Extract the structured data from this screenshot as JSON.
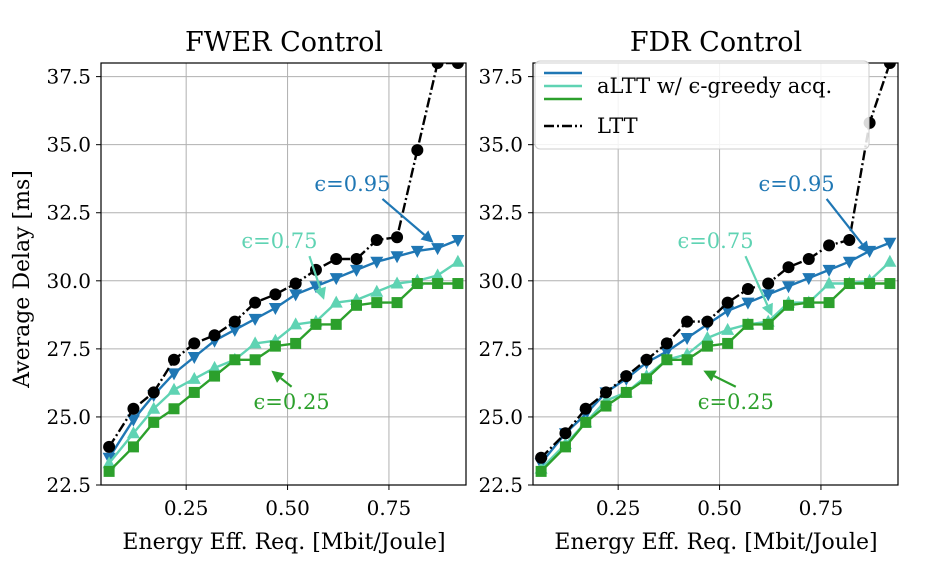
{
  "chart_data": [
    {
      "type": "line",
      "title": "FWER Control",
      "xlabel": "Energy Eff. Req. [Mbit/Joule]",
      "ylabel": "Average Delay [ms]",
      "xlim": [
        0.04,
        0.94
      ],
      "ylim": [
        22.5,
        38.0
      ],
      "xticks": [
        "0.25",
        "0.50",
        "0.75"
      ],
      "yticks": [
        "22.5",
        "25.0",
        "27.5",
        "30.0",
        "32.5",
        "35.0",
        "37.5"
      ],
      "grid": true,
      "x": [
        0.06,
        0.12,
        0.17,
        0.22,
        0.27,
        0.32,
        0.37,
        0.42,
        0.47,
        0.52,
        0.57,
        0.62,
        0.67,
        0.72,
        0.77,
        0.82,
        0.87,
        0.92
      ],
      "series": [
        {
          "name": "aLTT eps=0.95",
          "color": "#1f77b4",
          "marker": "triangle-down",
          "values": [
            23.5,
            24.9,
            25.8,
            26.6,
            27.2,
            27.8,
            28.2,
            28.6,
            29.0,
            29.5,
            29.8,
            30.1,
            30.4,
            30.7,
            30.9,
            31.1,
            31.2,
            31.5
          ]
        },
        {
          "name": "aLTT eps=0.75",
          "color": "#5fd3b3",
          "marker": "triangle-up",
          "values": [
            23.3,
            24.4,
            25.3,
            26.0,
            26.4,
            26.8,
            27.1,
            27.7,
            27.8,
            28.4,
            28.5,
            29.2,
            29.3,
            29.6,
            29.9,
            30.0,
            30.2,
            30.7
          ]
        },
        {
          "name": "aLTT eps=0.25",
          "color": "#2ca02c",
          "marker": "square",
          "values": [
            23.0,
            23.9,
            24.8,
            25.3,
            25.9,
            26.5,
            27.1,
            27.1,
            27.6,
            27.7,
            28.4,
            28.4,
            29.1,
            29.2,
            29.2,
            29.9,
            29.9,
            29.9
          ]
        },
        {
          "name": "LTT",
          "color": "#000000",
          "marker": "circle",
          "values": [
            23.9,
            25.3,
            25.9,
            27.1,
            27.7,
            28.0,
            28.5,
            29.2,
            29.5,
            29.9,
            30.4,
            30.8,
            30.8,
            31.5,
            31.6,
            34.8,
            38.0,
            38.0
          ]
        }
      ],
      "annotations": [
        {
          "text": "ϵ=0.95",
          "color": "#1f77b4",
          "xy": [
            0.86,
            31.4
          ],
          "xytext": [
            0.66,
            33.3
          ]
        },
        {
          "text": "ϵ=0.75",
          "color": "#5fd3b3",
          "xy": [
            0.59,
            29.3
          ],
          "xytext": [
            0.48,
            31.2
          ]
        },
        {
          "text": "ϵ=0.25",
          "color": "#2ca02c",
          "xy": [
            0.46,
            26.7
          ],
          "xytext": [
            0.51,
            25.3
          ]
        }
      ]
    },
    {
      "type": "line",
      "title": "FDR Control",
      "xlabel": "Energy Eff. Req. [Mbit/Joule]",
      "ylabel": "",
      "xlim": [
        0.04,
        0.94
      ],
      "ylim": [
        22.5,
        38.0
      ],
      "xticks": [
        "0.25",
        "0.50",
        "0.75"
      ],
      "yticks": [
        "22.5",
        "25.0",
        "27.5",
        "30.0",
        "32.5",
        "35.0",
        "37.5"
      ],
      "grid": true,
      "legend": {
        "location": "top-right",
        "entries": [
          "aLTT w/ ϵ-greedy acq.",
          "LTT"
        ]
      },
      "x": [
        0.06,
        0.12,
        0.17,
        0.22,
        0.27,
        0.32,
        0.37,
        0.42,
        0.47,
        0.52,
        0.57,
        0.62,
        0.67,
        0.72,
        0.77,
        0.82,
        0.87,
        0.92
      ],
      "series": [
        {
          "name": "aLTT eps=0.95",
          "color": "#1f77b4",
          "marker": "triangle-down",
          "values": [
            23.3,
            24.4,
            25.1,
            25.9,
            26.4,
            27.0,
            27.4,
            27.9,
            28.4,
            28.9,
            29.2,
            29.5,
            29.8,
            30.1,
            30.4,
            30.7,
            31.1,
            31.4
          ]
        },
        {
          "name": "aLTT eps=0.75",
          "color": "#5fd3b3",
          "marker": "triangle-up",
          "values": [
            23.1,
            24.0,
            24.8,
            25.6,
            25.9,
            26.5,
            27.1,
            27.3,
            27.9,
            28.2,
            28.4,
            28.5,
            29.2,
            29.2,
            29.9,
            29.9,
            30.0,
            30.7
          ]
        },
        {
          "name": "aLTT eps=0.25",
          "color": "#2ca02c",
          "marker": "square",
          "values": [
            23.0,
            23.9,
            24.8,
            25.4,
            25.9,
            26.4,
            27.1,
            27.1,
            27.6,
            27.7,
            28.4,
            28.4,
            29.1,
            29.2,
            29.2,
            29.9,
            29.9,
            29.9
          ]
        },
        {
          "name": "LTT",
          "color": "#000000",
          "marker": "circle",
          "values": [
            23.5,
            24.4,
            25.3,
            25.9,
            26.5,
            27.1,
            27.7,
            28.5,
            28.5,
            29.2,
            29.7,
            29.9,
            30.5,
            30.8,
            31.3,
            31.5,
            35.8,
            38.0
          ]
        }
      ],
      "annotations": [
        {
          "text": "ϵ=0.95",
          "color": "#1f77b4",
          "xy": [
            0.87,
            31.0
          ],
          "xytext": [
            0.69,
            33.3
          ]
        },
        {
          "text": "ϵ=0.75",
          "color": "#5fd3b3",
          "xy": [
            0.63,
            28.7
          ],
          "xytext": [
            0.49,
            31.2
          ]
        },
        {
          "text": "ϵ=0.25",
          "color": "#2ca02c",
          "xy": [
            0.46,
            26.7
          ],
          "xytext": [
            0.54,
            25.3
          ]
        }
      ]
    }
  ]
}
